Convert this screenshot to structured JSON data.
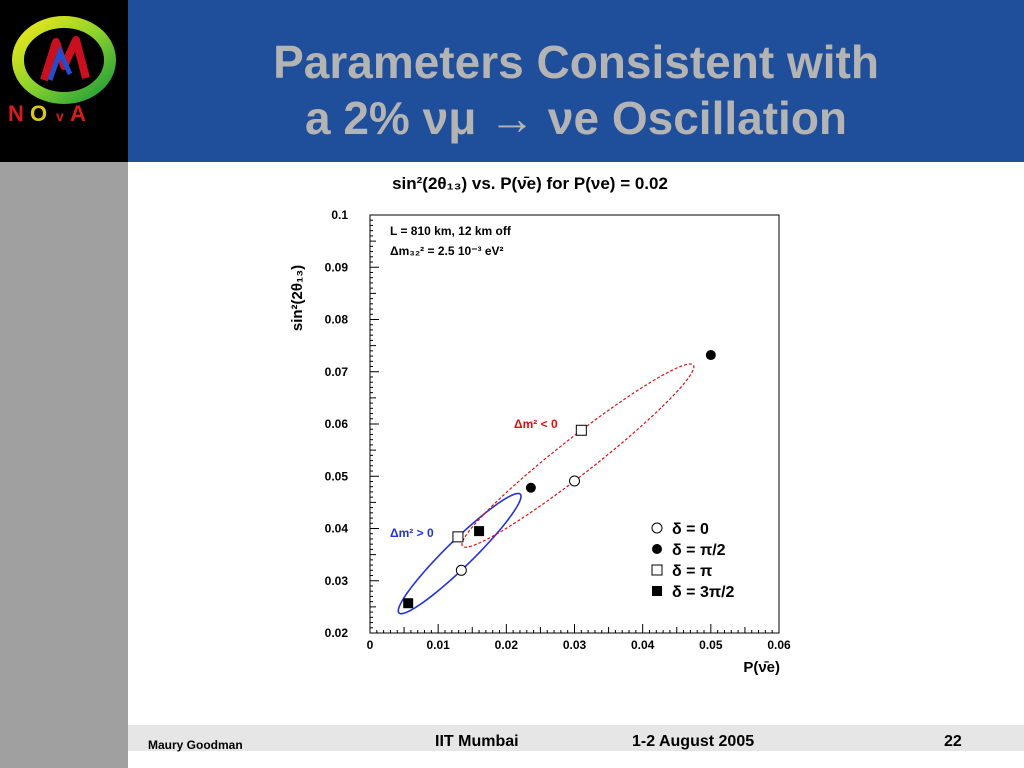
{
  "slide": {
    "title_line1": "Parameters Consistent with",
    "title_line2": "a 2% νμ → νe Oscillation",
    "logo_text": "NOvA"
  },
  "footer": {
    "author": "Maury Goodman",
    "venue": "IIT Mumbai",
    "date": "1-2 August 2005",
    "page": "22"
  },
  "colors": {
    "header_bg": "#1f4f9a",
    "left_bar": "#a0a0a0",
    "title_text": "#b4b4b4",
    "positive_hierarchy": "#2233dd",
    "negative_hierarchy": "#dd1111"
  },
  "chart_data": {
    "type": "scatter",
    "title": "sin²(2θ₁₃) vs. P(ν̄e) for P(νe) = 0.02",
    "xlabel": "P(ν̄e)",
    "ylabel": "sin²(2θ₁₃)",
    "xlim": [
      0,
      0.06
    ],
    "ylim": [
      0.02,
      0.1
    ],
    "x_ticks": [
      "0",
      "0.01",
      "0.02",
      "0.03",
      "0.04",
      "0.05",
      "0.06"
    ],
    "y_ticks": [
      "0.02",
      "0.03",
      "0.04",
      "0.05",
      "0.06",
      "0.07",
      "0.08",
      "0.09",
      "0.1"
    ],
    "annotations": {
      "baseline": "L = 810 km, 12 km off",
      "dm32": "Δm₃₂² = 2.5 10⁻³ eV²",
      "positive": "Δm² > 0",
      "negative": "Δm² < 0"
    },
    "legend_placement": "lower-right",
    "legend": [
      {
        "label": "δ = 0",
        "marker": "open-circle"
      },
      {
        "label": "δ = π/2",
        "marker": "filled-circle"
      },
      {
        "label": "δ = π",
        "marker": "open-square"
      },
      {
        "label": "δ = 3π/2",
        "marker": "filled-square"
      }
    ],
    "series": [
      {
        "name": "Δm² > 0",
        "style": "solid",
        "color": "#2233dd",
        "points": [
          {
            "delta": "0",
            "marker": "open-circle",
            "x": 0.0134,
            "y": 0.032
          },
          {
            "delta": "π/2",
            "marker": "filled-circle",
            "x": 0.0236,
            "y": 0.0478
          },
          {
            "delta": "π",
            "marker": "open-square",
            "x": 0.0129,
            "y": 0.0384
          },
          {
            "delta": "3π/2",
            "marker": "filled-square",
            "x": 0.0056,
            "y": 0.0257
          }
        ]
      },
      {
        "name": "Δm² < 0",
        "style": "dashed",
        "color": "#dd1111",
        "points": [
          {
            "delta": "0",
            "marker": "open-circle",
            "x": 0.03,
            "y": 0.0491
          },
          {
            "delta": "π/2",
            "marker": "filled-circle",
            "x": 0.05,
            "y": 0.0732
          },
          {
            "delta": "π",
            "marker": "open-square",
            "x": 0.031,
            "y": 0.0588
          },
          {
            "delta": "3π/2",
            "marker": "filled-square",
            "x": 0.016,
            "y": 0.0395
          }
        ]
      }
    ]
  }
}
